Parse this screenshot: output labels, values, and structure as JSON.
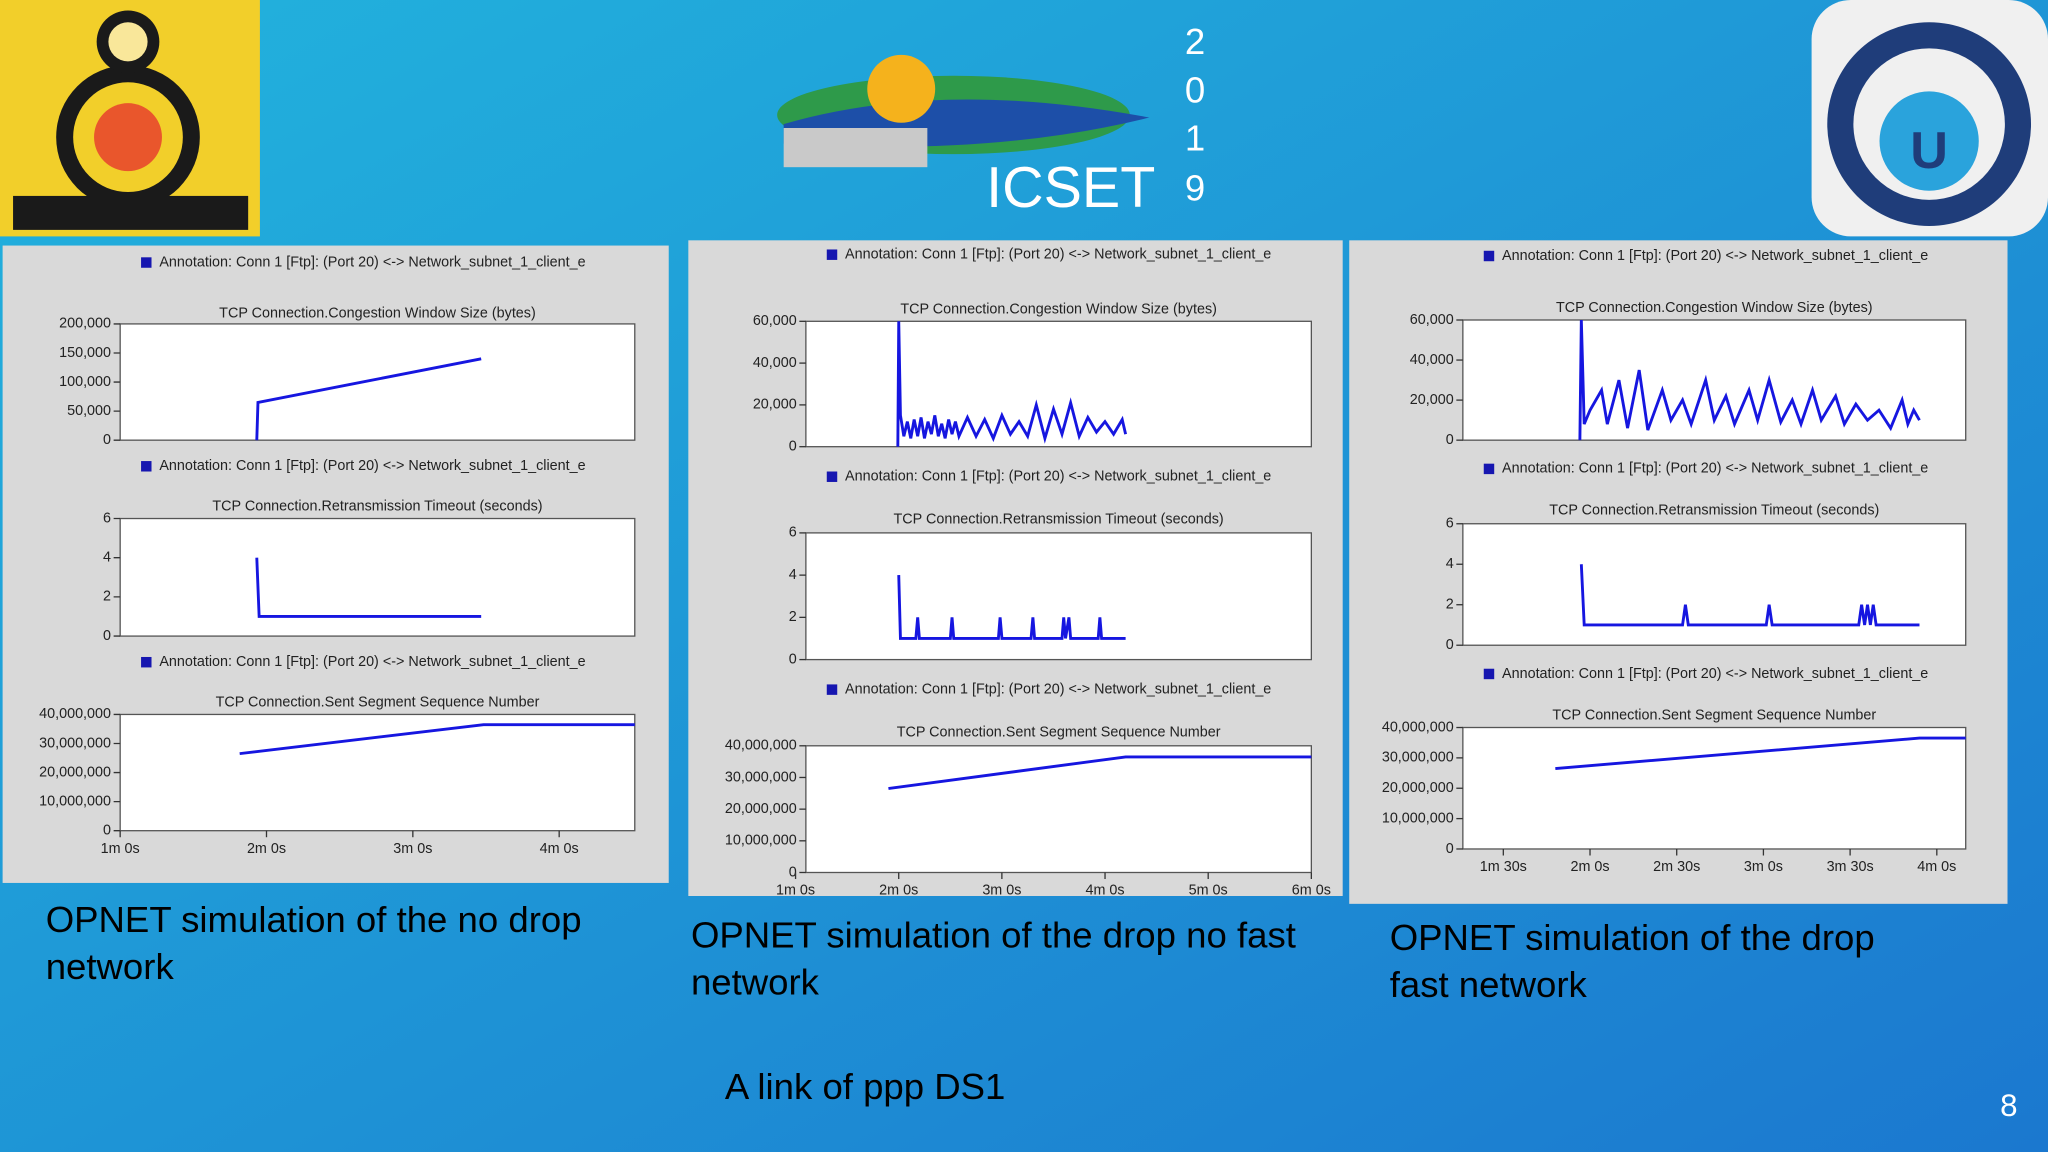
{
  "header": {
    "logo_text": "ICSET",
    "year_digits": [
      "2",
      "0",
      "1",
      "9"
    ]
  },
  "captions": [
    [
      "OPNET simulation of the no drop",
      "network"
    ],
    [
      "OPNET simulation of the drop no fast",
      "network"
    ],
    [
      "OPNET simulation of the drop",
      "fast network"
    ]
  ],
  "footer": "A link of ppp DS1",
  "page_number": "8",
  "chart_data": [
    {
      "type": "line",
      "annotation": "Annotation: Conn 1 [Ftp]: (Port 20) <-> Network_subnet_1_client_e",
      "title": "TCP Connection.Congestion Window Size (bytes)",
      "color": "#1616e0",
      "xlim": [
        60,
        271
      ],
      "ylim": [
        0,
        200000
      ],
      "yticks": [
        0,
        {
          "value": 50000,
          "label": "50,000"
        },
        {
          "value": 100000,
          "label": "100,000"
        },
        {
          "value": 150000,
          "label": "150,000"
        },
        {
          "value": 200000,
          "label": "200,000"
        }
      ],
      "x": [
        116,
        116.5,
        208
      ],
      "values": [
        0,
        65000,
        140000
      ]
    },
    {
      "type": "line",
      "annotation": "Annotation: Conn 1 [Ftp]: (Port 20) <-> Network_subnet_1_client_e",
      "title": "TCP Connection.Retransmission Timeout (seconds)",
      "color": "#1616e0",
      "xlim": [
        60,
        271
      ],
      "ylim": [
        0,
        6
      ],
      "yticks": [
        0,
        2,
        4,
        6
      ],
      "x": [
        116,
        117,
        208
      ],
      "values": [
        4,
        1,
        1
      ]
    },
    {
      "type": "line",
      "annotation": "Annotation: Conn 1 [Ftp]: (Port 20) <-> Network_subnet_1_client_e",
      "title": "TCP Connection.Sent Segment Sequence Number",
      "color": "#1616e0",
      "xlim": [
        60,
        271
      ],
      "ylim": [
        0,
        40000000
      ],
      "yticks": [
        0,
        {
          "value": 10000000,
          "label": "10,000,000"
        },
        {
          "value": 20000000,
          "label": "20,000,000"
        },
        {
          "value": 30000000,
          "label": "30,000,000"
        },
        {
          "value": 40000000,
          "label": "40,000,000"
        }
      ],
      "xticks": [
        {
          "value": 60,
          "label": "1m 0s"
        },
        {
          "value": 120,
          "label": "2m 0s"
        },
        {
          "value": 180,
          "label": "3m 0s"
        },
        {
          "value": 240,
          "label": "4m 0s"
        }
      ],
      "x": [
        109,
        209,
        271
      ],
      "values": [
        26500000,
        36500000,
        36500000
      ]
    },
    {
      "type": "line",
      "annotation": "Annotation: Conn 1 [Ftp]: (Port 20) <-> Network_subnet_1_client_e",
      "title": "TCP Connection.Congestion Window Size (bytes)",
      "color": "#1616e0",
      "xlim": [
        66,
        360
      ],
      "ylim": [
        0,
        60000
      ],
      "yticks": [
        0,
        {
          "value": 20000,
          "label": "20,000"
        },
        {
          "value": 40000,
          "label": "40,000"
        },
        {
          "value": 60000,
          "label": "60,000"
        }
      ],
      "x": [
        119.5,
        120,
        121,
        123,
        125,
        127,
        129,
        131,
        133,
        135,
        137,
        139,
        141,
        143,
        145,
        147,
        149,
        151,
        153,
        155,
        160,
        165,
        170,
        175,
        180,
        185,
        190,
        195,
        200,
        205,
        210,
        215,
        220,
        225,
        230,
        235,
        240,
        245,
        250,
        252
      ],
      "values": [
        0,
        60000,
        15000,
        5000,
        12000,
        4000,
        13000,
        5000,
        14000,
        4000,
        12000,
        6000,
        15000,
        5000,
        11000,
        4000,
        13000,
        6000,
        12000,
        5000,
        14000,
        5000,
        13000,
        4000,
        15000,
        6000,
        12000,
        5000,
        20000,
        4000,
        18000,
        6000,
        21000,
        5000,
        14000,
        7000,
        12000,
        6000,
        13000,
        6000
      ]
    },
    {
      "type": "line",
      "annotation": "Annotation: Conn 1 [Ftp]: (Port 20) <-> Network_subnet_1_client_e",
      "title": "TCP Connection.Retransmission Timeout (seconds)",
      "color": "#1616e0",
      "xlim": [
        66,
        360
      ],
      "ylim": [
        0,
        6
      ],
      "yticks": [
        0,
        2,
        4,
        6
      ],
      "x": [
        120,
        121,
        130,
        131,
        132,
        150,
        151,
        152,
        178,
        179,
        180,
        197,
        198,
        199,
        215,
        216,
        217,
        219,
        220,
        221,
        236,
        237,
        238,
        252
      ],
      "values": [
        4,
        1,
        1,
        2,
        1,
        1,
        2,
        1,
        1,
        2,
        1,
        1,
        2,
        1,
        1,
        2,
        1,
        2,
        1,
        1,
        1,
        2,
        1,
        1
      ]
    },
    {
      "type": "line",
      "annotation": "Annotation: Conn 1 [Ftp]: (Port 20) <-> Network_subnet_1_client_e",
      "title": "TCP Connection.Sent Segment Sequence Number",
      "color": "#1616e0",
      "xlim": [
        66,
        360
      ],
      "ylim": [
        0,
        40000000
      ],
      "yticks": [
        0,
        {
          "value": 10000000,
          "label": "10,000,000"
        },
        {
          "value": 20000000,
          "label": "20,000,000"
        },
        {
          "value": 30000000,
          "label": "30,000,000"
        },
        {
          "value": 40000000,
          "label": "40,000,000"
        }
      ],
      "xticks": [
        {
          "value": 60,
          "label": "1m 0s"
        },
        {
          "value": 120,
          "label": "2m 0s"
        },
        {
          "value": 180,
          "label": "3m 0s"
        },
        {
          "value": 240,
          "label": "4m 0s"
        },
        {
          "value": 300,
          "label": "5m 0s"
        },
        {
          "value": 360,
          "label": "6m 0s"
        }
      ],
      "x": [
        114,
        252,
        360
      ],
      "values": [
        26500000,
        36500000,
        36500000
      ]
    },
    {
      "type": "line",
      "annotation": "Annotation: Conn 1 [Ftp]: (Port 20) <-> Network_subnet_1_client_e",
      "title": "TCP Connection.Congestion Window Size (bytes)",
      "color": "#1616e0",
      "xlim": [
        76,
        250
      ],
      "ylim": [
        0,
        60000
      ],
      "yticks": [
        0,
        {
          "value": 20000,
          "label": "20,000"
        },
        {
          "value": 40000,
          "label": "40,000"
        },
        {
          "value": 60000,
          "label": "60,000"
        }
      ],
      "x": [
        116.5,
        117,
        118,
        120,
        124,
        126,
        130,
        133,
        137,
        140,
        145,
        148,
        152,
        155,
        160,
        163,
        167,
        170,
        175,
        178,
        182,
        186,
        190,
        193,
        197,
        200,
        205,
        208,
        212,
        216,
        220,
        224,
        228,
        230,
        232,
        234
      ],
      "values": [
        0,
        60000,
        8000,
        15000,
        25000,
        8000,
        30000,
        6000,
        35000,
        5000,
        25000,
        10000,
        20000,
        8000,
        30000,
        10000,
        22000,
        8000,
        25000,
        10000,
        30000,
        9000,
        20000,
        8000,
        25000,
        10000,
        22000,
        8000,
        18000,
        10000,
        15000,
        6000,
        20000,
        8000,
        15000,
        10000
      ]
    },
    {
      "type": "line",
      "annotation": "Annotation: Conn 1 [Ftp]: (Port 20) <-> Network_subnet_1_client_e",
      "title": "TCP Connection.Retransmission Timeout (seconds)",
      "color": "#1616e0",
      "xlim": [
        76,
        250
      ],
      "ylim": [
        0,
        6
      ],
      "yticks": [
        0,
        2,
        4,
        6
      ],
      "x": [
        117,
        118,
        119,
        152,
        153,
        154,
        181,
        182,
        183,
        213,
        214,
        215,
        216,
        217,
        218,
        219,
        220,
        234
      ],
      "values": [
        4,
        1,
        1,
        1,
        2,
        1,
        1,
        2,
        1,
        1,
        2,
        1,
        2,
        1,
        2,
        1,
        1,
        1
      ]
    },
    {
      "type": "line",
      "annotation": "Annotation: Conn 1 [Ftp]: (Port 20) <-> Network_subnet_1_client_e",
      "title": "TCP Connection.Sent Segment Sequence Number",
      "color": "#1616e0",
      "xlim": [
        76,
        250
      ],
      "ylim": [
        0,
        40000000
      ],
      "yticks": [
        0,
        {
          "value": 10000000,
          "label": "10,000,000"
        },
        {
          "value": 20000000,
          "label": "20,000,000"
        },
        {
          "value": 30000000,
          "label": "30,000,000"
        },
        {
          "value": 40000000,
          "label": "40,000,000"
        }
      ],
      "xticks": [
        {
          "value": 90,
          "label": "1m 30s"
        },
        {
          "value": 120,
          "label": "2m 0s"
        },
        {
          "value": 150,
          "label": "2m 30s"
        },
        {
          "value": 180,
          "label": "3m 0s"
        },
        {
          "value": 210,
          "label": "3m 30s"
        },
        {
          "value": 240,
          "label": "4m 0s"
        }
      ],
      "x": [
        108,
        234,
        250
      ],
      "values": [
        26500000,
        36500000,
        36500000
      ]
    }
  ]
}
